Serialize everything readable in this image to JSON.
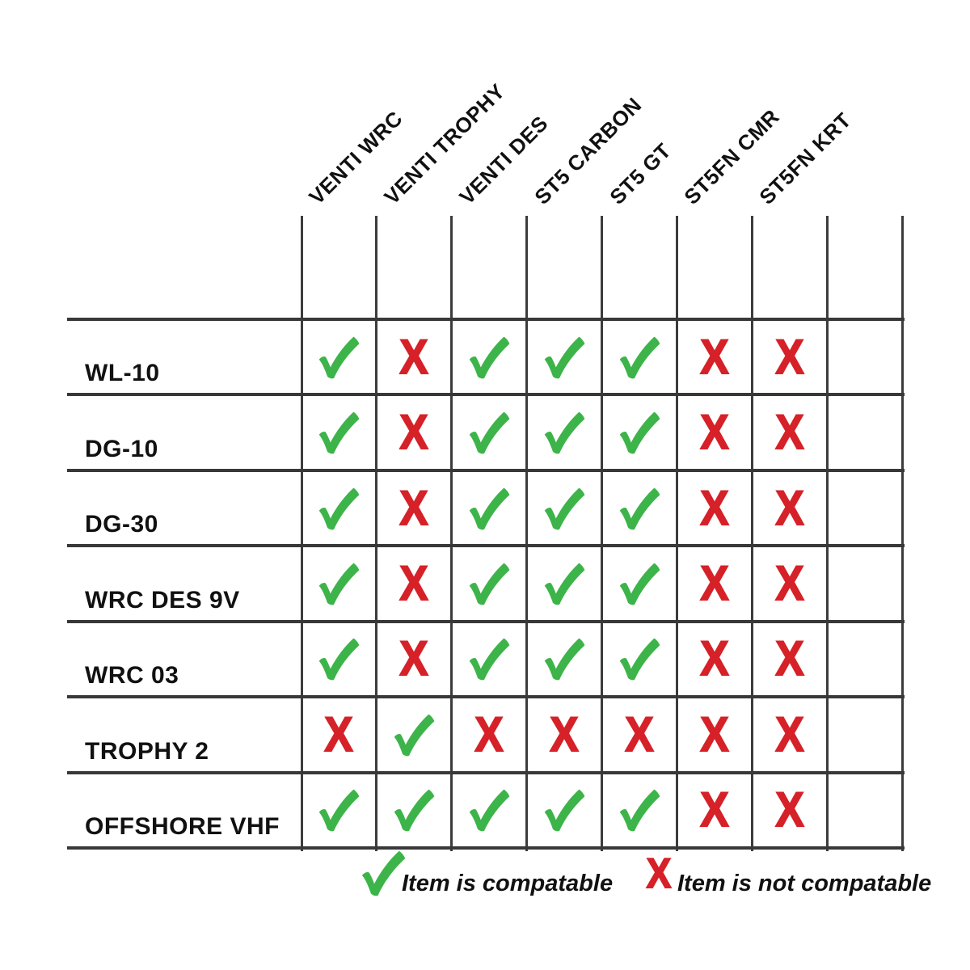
{
  "page": {
    "background": "#ffffff"
  },
  "chart_data": {
    "type": "table",
    "title": "",
    "columns": [
      "VENTI WRC",
      "VENTI TROPHY",
      "VENTI DES",
      "ST5 CARBON",
      "ST5 GT",
      "ST5FN CMR",
      "ST5FN KRT",
      ""
    ],
    "rows": [
      "WL-10",
      "DG-10",
      "DG-30",
      "WRC DES 9V",
      "WRC 03",
      "TROPHY 2",
      "OFFSHORE VHF"
    ],
    "values": [
      [
        "check",
        "x",
        "check",
        "check",
        "check",
        "x",
        "x",
        ""
      ],
      [
        "check",
        "x",
        "check",
        "check",
        "check",
        "x",
        "x",
        ""
      ],
      [
        "check",
        "x",
        "check",
        "check",
        "check",
        "x",
        "x",
        ""
      ],
      [
        "check",
        "x",
        "check",
        "check",
        "check",
        "x",
        "x",
        ""
      ],
      [
        "check",
        "x",
        "check",
        "check",
        "check",
        "x",
        "x",
        ""
      ],
      [
        "x",
        "check",
        "x",
        "x",
        "x",
        "x",
        "x",
        ""
      ],
      [
        "check",
        "check",
        "check",
        "check",
        "check",
        "x",
        "x",
        ""
      ]
    ],
    "legend": [
      {
        "icon": "check-icon",
        "label": "Item is compatable"
      },
      {
        "icon": "x-icon",
        "label": "Item is not compatable"
      }
    ],
    "layout_hints": {
      "grid": "on",
      "legend_position": "bottom",
      "header_rotation_deg": -45
    }
  },
  "icons": {
    "cross_glyph": "X",
    "check_shape": "green-swoosh-check"
  },
  "colors": {
    "check_green": "#3db449",
    "cross_red": "#d62128",
    "grid_line": "#3c3c3c",
    "text": "#161616"
  }
}
